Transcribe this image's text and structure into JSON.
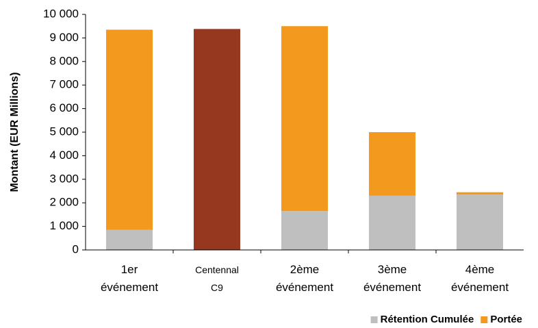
{
  "chart_data": {
    "type": "stacked-bar",
    "y_label": "Montant (EUR Millions)",
    "categories": [
      "1er événement",
      "Centennal C9",
      "2ème événement",
      "3ème événement",
      "4ème événement"
    ],
    "series": [
      {
        "name": "Rétention Cumulée",
        "color": "#bfbfbf",
        "values": [
          850,
          null,
          1650,
          2300,
          2350
        ]
      },
      {
        "name": "Portée",
        "color": "#f39a1e",
        "values": [
          8500,
          null,
          7850,
          2700,
          100
        ]
      }
    ],
    "highlight": {
      "color": "#963720",
      "values": [
        null,
        9380,
        null,
        null,
        null
      ]
    },
    "ylim": [
      0,
      10000
    ],
    "yticks": [
      0,
      {
        "value": 1000,
        "label": "1 000"
      },
      {
        "value": 2000,
        "label": "2 000"
      },
      {
        "value": 3000,
        "label": "3 000"
      },
      {
        "value": 4000,
        "label": "4 000"
      },
      {
        "value": 5000,
        "label": "5 000"
      },
      {
        "value": 6000,
        "label": "6 000"
      },
      {
        "value": 7000,
        "label": "7 000"
      },
      {
        "value": 8000,
        "label": "8 000"
      },
      {
        "value": 9000,
        "label": "9 000"
      },
      {
        "value": 10000,
        "label": "10 000"
      }
    ],
    "legend": "bottom-right"
  }
}
